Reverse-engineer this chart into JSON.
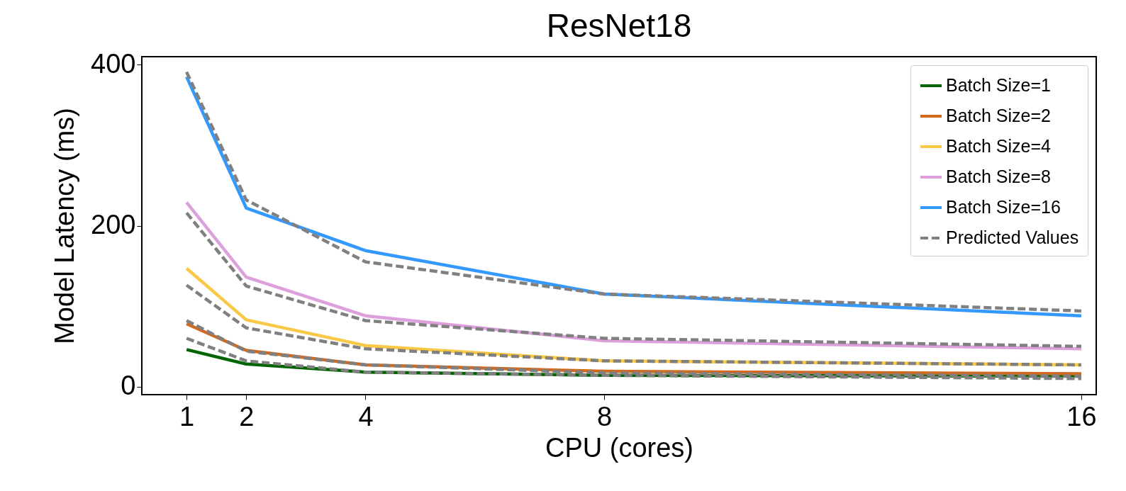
{
  "chart_data": {
    "type": "line",
    "title": "ResNet18",
    "xlabel": "CPU (cores)",
    "ylabel": "Model Latency (ms)",
    "x": [
      1,
      2,
      4,
      8,
      16
    ],
    "xlim": [
      0.25,
      16.25
    ],
    "xticks": [
      1,
      2,
      4,
      8,
      16
    ],
    "ylim": [
      -10,
      410
    ],
    "yticks": [
      0,
      200,
      400
    ],
    "grid": false,
    "legend": "top right",
    "marker": "none",
    "series": [
      {
        "name": "Batch Size=1",
        "color": "#006400",
        "line_style": "solid",
        "values": [
          46,
          28,
          18,
          14,
          13
        ]
      },
      {
        "name": "Batch Size=2",
        "color": "#d2691e",
        "line_style": "solid",
        "values": [
          78,
          45,
          27,
          19,
          16
        ]
      },
      {
        "name": "Batch Size=4",
        "color": "#f9c846",
        "line_style": "solid",
        "values": [
          147,
          83,
          51,
          32,
          27
        ]
      },
      {
        "name": "Batch Size=8",
        "color": "#dda0dd",
        "line_style": "solid",
        "values": [
          229,
          136,
          88,
          57,
          47
        ]
      },
      {
        "name": "Batch Size=16",
        "color": "#3399ff",
        "line_style": "solid",
        "values": [
          385,
          222,
          169,
          115,
          88
        ]
      },
      {
        "name": "Predicted Values",
        "color": "#808080",
        "line_style": "dashed",
        "values": [
          60,
          32,
          18,
          14,
          10
        ]
      },
      {
        "color": "#808080",
        "line_style": "dashed",
        "values": [
          82,
          44,
          27,
          17,
          13
        ]
      },
      {
        "color": "#808080",
        "line_style": "dashed",
        "values": [
          126,
          73,
          47,
          32,
          27
        ]
      },
      {
        "color": "#808080",
        "line_style": "dashed",
        "values": [
          216,
          125,
          82,
          60,
          50
        ]
      },
      {
        "color": "#808080",
        "line_style": "dashed",
        "values": [
          391,
          232,
          155,
          115,
          94
        ]
      }
    ]
  }
}
